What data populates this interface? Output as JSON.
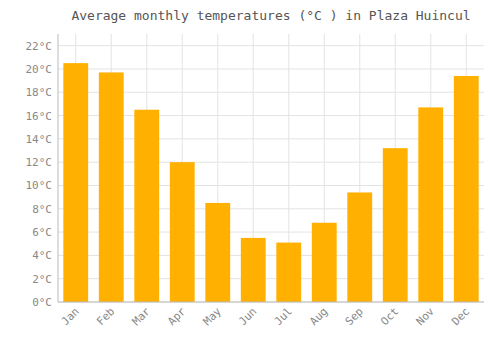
{
  "chart_data": {
    "type": "bar",
    "title": "Average monthly temperatures (°C ) in Plaza Huincul",
    "categories": [
      "Jan",
      "Feb",
      "Mar",
      "Apr",
      "May",
      "Jun",
      "Jul",
      "Aug",
      "Sep",
      "Oct",
      "Nov",
      "Dec"
    ],
    "values": [
      20.5,
      19.7,
      16.5,
      12.0,
      8.5,
      5.5,
      5.1,
      6.8,
      9.4,
      13.2,
      16.7,
      19.4
    ],
    "color": "#FFB000",
    "ylim": [
      0,
      23
    ],
    "yticks": [
      {
        "value": 0,
        "label": "0°C"
      },
      {
        "value": 2,
        "label": "2°C"
      },
      {
        "value": 4,
        "label": "4°C"
      },
      {
        "value": 6,
        "label": "6°C"
      },
      {
        "value": 8,
        "label": "8°C"
      },
      {
        "value": 10,
        "label": "10°C"
      },
      {
        "value": 12,
        "label": "12°C"
      },
      {
        "value": 14,
        "label": "14°C"
      },
      {
        "value": 16,
        "label": "16°C"
      },
      {
        "value": 18,
        "label": "18°C"
      },
      {
        "value": 20,
        "label": "20°C"
      },
      {
        "value": 22,
        "label": "22°C"
      }
    ],
    "grid": true
  }
}
